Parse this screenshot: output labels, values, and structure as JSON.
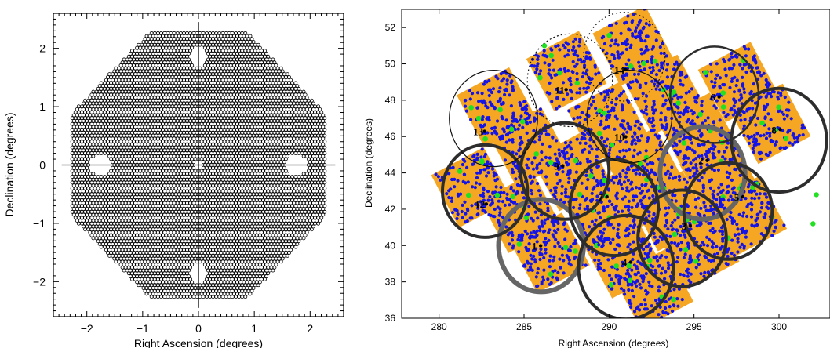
{
  "chart_data": [
    {
      "type": "scatter",
      "title": "",
      "xlabel": "Right Ascension (degrees)",
      "ylabel": "Declination (degrees)",
      "xlim": [
        -2.6,
        2.6
      ],
      "ylim": [
        -2.6,
        2.6
      ],
      "xticks": [
        "−2",
        "−1",
        "0",
        "1",
        "2"
      ],
      "xtick_values": [
        -2,
        -1,
        0,
        1,
        2
      ],
      "yticks": [
        "−2",
        "−1",
        "0",
        "1",
        "2"
      ],
      "ytick_values": [
        -2,
        -1,
        0,
        1,
        2
      ],
      "grid": false,
      "footprint": {
        "shape": "octagon",
        "circumradius_deg": 2.45,
        "lens_spacing_deg": 0.058,
        "chip_gaps": [
          "horizontal line at Dec 0",
          "vertical line at RA 0"
        ],
        "holes": [
          {
            "ra": 0,
            "dec": 1.85,
            "r": 0.17
          },
          {
            "ra": 0,
            "dec": -1.85,
            "r": 0.17
          },
          {
            "ra": -1.75,
            "dec": 0,
            "r": 0.2
          },
          {
            "ra": 1.75,
            "dec": 0,
            "r": 0.2
          },
          {
            "ra": 0,
            "dec": 0,
            "r": 0.08
          }
        ]
      },
      "colors": {
        "lens": "#000000",
        "frame": "#000000"
      }
    },
    {
      "type": "scatter",
      "title": "",
      "xlabel": "Right Ascension (degrees)",
      "ylabel": "Declination (degrees)",
      "xlim": [
        277.8,
        303
      ],
      "ylim": [
        36,
        53
      ],
      "xticks": [
        "280",
        "285",
        "290",
        "295",
        "300"
      ],
      "xtick_values": [
        280,
        285,
        290,
        295,
        300
      ],
      "yticks": [
        "36",
        "38",
        "40",
        "42",
        "44",
        "46",
        "48",
        "50",
        "52"
      ],
      "ytick_values": [
        36,
        38,
        40,
        42,
        44,
        46,
        48,
        50,
        52
      ],
      "grid": false,
      "ccd_modules": [
        {
          "ra": 291.4,
          "dec": 51.0
        },
        {
          "ra": 287.5,
          "dec": 49.6
        },
        {
          "ra": 283.4,
          "dec": 47.6
        },
        {
          "ra": 293.3,
          "dec": 48.3
        },
        {
          "ra": 297.6,
          "dec": 49.0
        },
        {
          "ra": 289.9,
          "dec": 46.8
        },
        {
          "ra": 285.3,
          "dec": 45.4
        },
        {
          "ra": 295.2,
          "dec": 46.2
        },
        {
          "ra": 299.5,
          "dec": 46.7
        },
        {
          "ra": 281.9,
          "dec": 43.2
        },
        {
          "ra": 287.8,
          "dec": 44.1
        },
        {
          "ra": 292.0,
          "dec": 44.3
        },
        {
          "ra": 296.5,
          "dec": 43.8
        },
        {
          "ra": 284.8,
          "dec": 41.8
        },
        {
          "ra": 289.7,
          "dec": 41.8
        },
        {
          "ra": 293.6,
          "dec": 41.9
        },
        {
          "ra": 298.1,
          "dec": 41.6
        },
        {
          "ra": 286.5,
          "dec": 39.6
        },
        {
          "ra": 290.9,
          "dec": 39.3
        },
        {
          "ra": 295.3,
          "dec": 39.8
        },
        {
          "ra": 292.6,
          "dec": 37.6
        }
      ],
      "circles": [
        {
          "label": "1",
          "ra": 286.0,
          "dec": 40.0,
          "r": 2.5,
          "style": "thick-gray"
        },
        {
          "label": "2",
          "ra": 295.5,
          "dec": 44.0,
          "r": 2.5,
          "style": "thick-gray"
        },
        {
          "label": "3",
          "ra": 294.3,
          "dec": 40.4,
          "r": 2.6,
          "style": "thick-dark"
        },
        {
          "label": "4",
          "ra": 291.0,
          "dec": 38.8,
          "r": 2.8,
          "style": "thick-dark"
        },
        {
          "label": "5",
          "ra": 297.0,
          "dec": 41.9,
          "r": 2.6,
          "style": "thick-dark"
        },
        {
          "label": "6",
          "ra": 296.2,
          "dec": 48.3,
          "r": 2.6,
          "style": "medium-dark"
        },
        {
          "label": "7",
          "ra": 290.3,
          "dec": 42.1,
          "r": 2.6,
          "style": "thick-dark"
        },
        {
          "label": "8",
          "ra": 300.0,
          "dec": 45.8,
          "r": 2.8,
          "style": "thick-dark"
        },
        {
          "label": "9",
          "ra": 287.4,
          "dec": 44.1,
          "r": 2.6,
          "style": "thick-dark"
        },
        {
          "label": "10",
          "ra": 291.2,
          "dec": 47.1,
          "r": 2.5,
          "style": "thin"
        },
        {
          "label": "11",
          "ra": 287.7,
          "dec": 49.1,
          "r": 2.5,
          "style": "dotted"
        },
        {
          "label": "12",
          "ra": 282.7,
          "dec": 43.0,
          "r": 2.5,
          "style": "thick-dark"
        },
        {
          "label": "13",
          "ra": 283.2,
          "dec": 47.0,
          "r": 2.6,
          "style": "thin"
        },
        {
          "label": "14",
          "ra": 290.9,
          "dec": 50.4,
          "r": 2.4,
          "style": "dotted"
        }
      ],
      "circle_label_positions": [
        {
          "label": "1",
          "ra": 285.7,
          "dec": 39.9
        },
        {
          "label": "2",
          "ra": 295.5,
          "dec": 44.6
        },
        {
          "label": "3",
          "ra": 294.5,
          "dec": 41.0
        },
        {
          "label": "4",
          "ra": 291.0,
          "dec": 39.0
        },
        {
          "label": "5",
          "ra": 297.6,
          "dec": 42.6
        },
        {
          "label": "6",
          "ra": 296.2,
          "dec": 48.1
        },
        {
          "label": "7",
          "ra": 289.6,
          "dec": 42.6
        },
        {
          "label": "8",
          "ra": 299.8,
          "dec": 46.3
        },
        {
          "label": "9",
          "ra": 287.0,
          "dec": 44.3
        },
        {
          "label": "10",
          "ra": 290.7,
          "dec": 45.9
        },
        {
          "label": "11",
          "ra": 287.2,
          "dec": 48.5
        },
        {
          "label": "12",
          "ra": 282.5,
          "dec": 42.2
        },
        {
          "label": "13",
          "ra": 282.4,
          "dec": 46.2
        },
        {
          "label": "14",
          "ra": 290.7,
          "dec": 49.6
        }
      ],
      "isolated_points": [
        {
          "ra": 302.2,
          "dec": 42.8,
          "color": "green"
        },
        {
          "ra": 302.0,
          "dec": 41.2,
          "color": "green"
        },
        {
          "ra": 286.2,
          "dec": 51.0,
          "color": "green"
        }
      ],
      "colors": {
        "ccd": "#f5a623",
        "star_blue": "#1414e6",
        "star_green": "#22e022",
        "thick_gray": "#666666",
        "thick_dark": "#2d2d2d",
        "thin": "#111111"
      }
    }
  ]
}
